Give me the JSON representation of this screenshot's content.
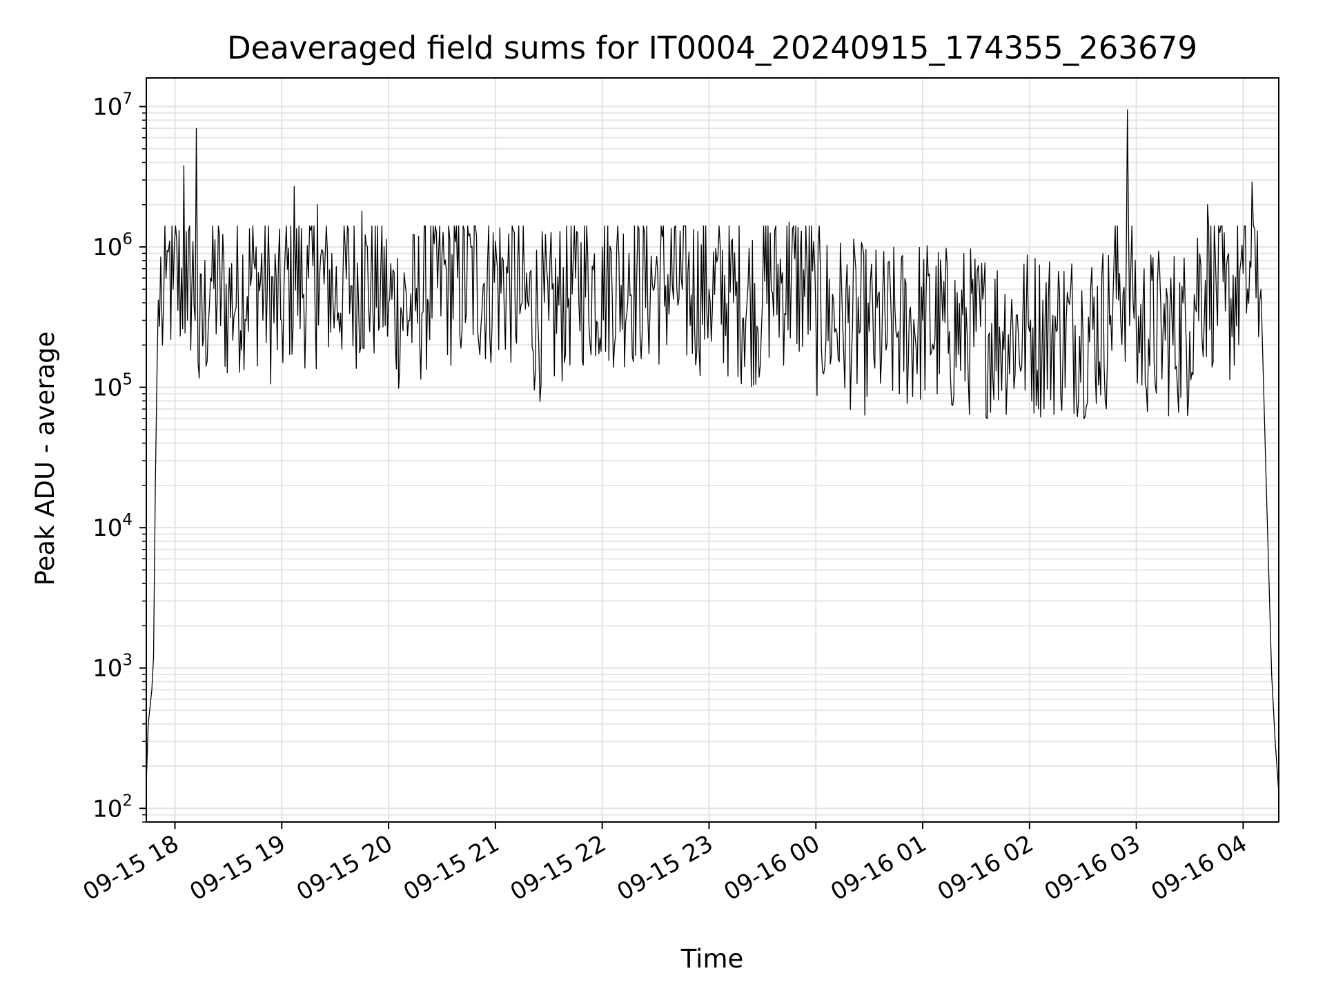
{
  "chart_data": {
    "type": "line",
    "title": "Deaveraged field sums for IT0004_20240915_174355_263679",
    "xlabel": "Time",
    "ylabel": "Peak ADU - average",
    "yscale": "log",
    "ylim": [
      80,
      16000000
    ],
    "xlim": [
      "2024-09-15 17:43:55",
      "2024-09-16 04:20:00"
    ],
    "grid": true,
    "line_color": "#000000",
    "x_ticks": [
      "2024-09-15 18:00",
      "2024-09-15 19:00",
      "2024-09-15 20:00",
      "2024-09-15 21:00",
      "2024-09-15 22:00",
      "2024-09-15 23:00",
      "2024-09-16 00:00",
      "2024-09-16 01:00",
      "2024-09-16 02:00",
      "2024-09-16 03:00",
      "2024-09-16 04:00"
    ],
    "x_tick_labels": [
      "09-15 18",
      "09-15 19",
      "09-15 20",
      "09-15 21",
      "09-15 22",
      "09-15 23",
      "09-16 00",
      "09-16 01",
      "09-16 02",
      "09-16 03",
      "09-16 04"
    ],
    "y_ticks": [
      100,
      1000,
      10000,
      100000,
      1000000,
      10000000
    ],
    "y_tick_labels": [
      {
        "base": "10",
        "exp": "2"
      },
      {
        "base": "10",
        "exp": "3"
      },
      {
        "base": "10",
        "exp": "4"
      },
      {
        "base": "10",
        "exp": "5"
      },
      {
        "base": "10",
        "exp": "6"
      },
      {
        "base": "10",
        "exp": "7"
      }
    ],
    "series": [
      {
        "x": [
          "2024-09-15 17:43:55",
          "2024-09-15 17:45",
          "2024-09-15 17:47",
          "2024-09-15 17:48",
          "2024-09-15 17:49",
          "2024-09-15 17:50",
          "2024-09-15 17:52",
          "2024-09-15 17:53",
          "2024-09-15 17:55",
          "2024-09-15 17:57",
          "2024-09-15 17:59",
          "2024-09-15 18:05",
          "2024-09-15 18:07",
          "2024-09-15 18:12",
          "2024-09-15 18:13",
          "2024-09-15 18:20",
          "2024-09-15 18:30",
          "2024-09-15 18:45",
          "2024-09-15 19:00",
          "2024-09-15 19:07",
          "2024-09-15 19:15",
          "2024-09-15 19:20",
          "2024-09-15 19:30",
          "2024-09-15 19:45",
          "2024-09-15 20:00",
          "2024-09-15 20:15",
          "2024-09-15 20:30",
          "2024-09-15 20:45",
          "2024-09-15 21:00",
          "2024-09-15 21:15",
          "2024-09-15 21:30",
          "2024-09-15 21:45",
          "2024-09-15 22:00",
          "2024-09-15 22:15",
          "2024-09-15 22:30",
          "2024-09-15 22:45",
          "2024-09-15 23:00",
          "2024-09-15 23:15",
          "2024-09-15 23:30",
          "2024-09-15 23:45",
          "2024-09-16 00:00",
          "2024-09-16 00:15",
          "2024-09-16 00:30",
          "2024-09-16 00:45",
          "2024-09-16 01:00",
          "2024-09-16 01:15",
          "2024-09-16 01:30",
          "2024-09-16 01:45",
          "2024-09-16 02:00",
          "2024-09-16 02:15",
          "2024-09-16 02:30",
          "2024-09-16 02:45",
          "2024-09-16 02:55",
          "2024-09-16 03:00",
          "2024-09-16 03:15",
          "2024-09-16 03:30",
          "2024-09-16 03:40",
          "2024-09-16 03:50",
          "2024-09-16 04:00",
          "2024-09-16 04:05",
          "2024-09-16 04:08",
          "2024-09-16 04:10",
          "2024-09-16 04:13",
          "2024-09-16 04:16",
          "2024-09-16 04:18",
          "2024-09-16 04:20"
        ],
        "y": [
          150,
          400,
          700,
          1200,
          20000,
          150000,
          850000,
          200000,
          600000,
          1100000,
          500000,
          3800000,
          300000,
          7000000,
          150000,
          600000,
          400000,
          700000,
          300000,
          2700000,
          600000,
          2000000,
          400000,
          1800000,
          400000,
          350000,
          900000,
          1200000,
          1100000,
          400000,
          300000,
          600000,
          1000000,
          900000,
          700000,
          500000,
          500000,
          450000,
          400000,
          1500000,
          350000,
          300000,
          250000,
          250000,
          300000,
          250000,
          250000,
          250000,
          250000,
          250000,
          250000,
          280000,
          9500000,
          250000,
          250000,
          250000,
          2000000,
          350000,
          650000,
          2900000,
          1300000,
          500000,
          20000,
          900,
          300,
          130
        ]
      }
    ]
  }
}
